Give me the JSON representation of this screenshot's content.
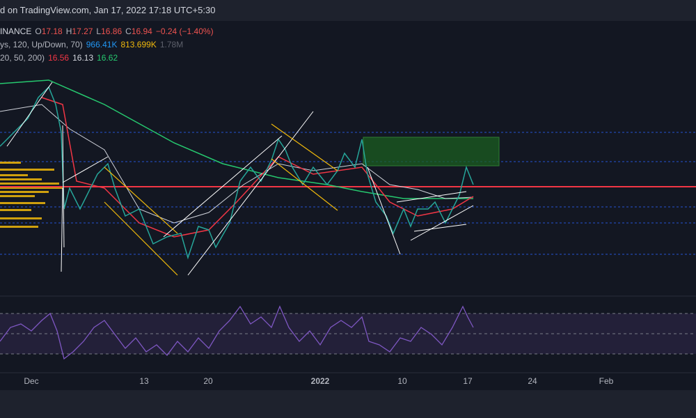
{
  "header": {
    "caption": "d on TradingView.com, Jan 17, 2022 17:18 UTC+5:30"
  },
  "legend": {
    "ohlc": {
      "symbol": "INANCE",
      "o_label": "O",
      "open": "17.18",
      "h_label": "H",
      "high": "17.27",
      "l_label": "L",
      "low": "16.86",
      "c_label": "C",
      "close": "16.94",
      "change": "−0.24 (−1.40%)"
    },
    "volume_profile": {
      "params": "ys, 120, Up/Down, 70)",
      "up": "966.41K",
      "down": "813.699K",
      "total": "1.78M"
    },
    "moving_averages": {
      "params": "20, 50, 200)",
      "ma20": "16.56",
      "ma50": "16.13",
      "ma200": "16.62"
    }
  },
  "x_axis": {
    "labels": [
      "Dec",
      "13",
      "20",
      "2022",
      "10",
      "17",
      "24",
      "Feb"
    ]
  }
}
